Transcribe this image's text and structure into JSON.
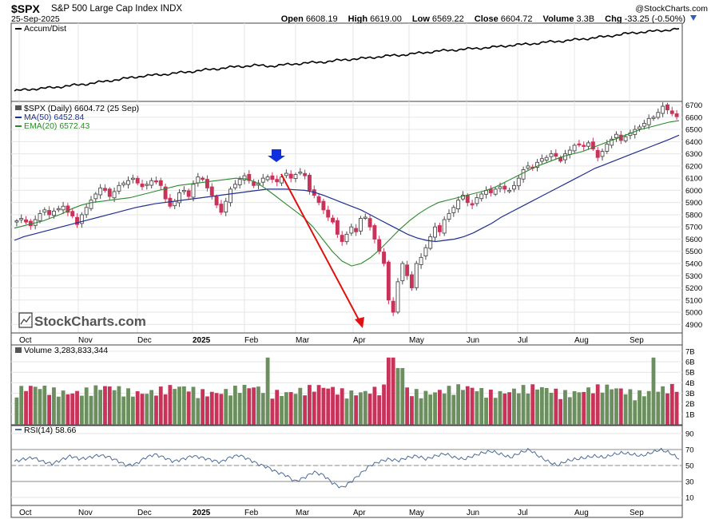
{
  "header": {
    "symbol": "$SPX",
    "name": "S&P 500 Large Cap Index INDX",
    "date": "25-Sep-2025",
    "copyright": "@StockCharts.com",
    "open_label": "Open",
    "open": "6608.19",
    "high_label": "High",
    "high": "6619.00",
    "low_label": "Low",
    "low": "6569.22",
    "close_label": "Close",
    "close": "6604.72",
    "volume_label": "Volume",
    "volume": "3.3B",
    "chg_label": "Chg",
    "chg": "-33.25 (-0.50%)"
  },
  "colors": {
    "up": "#6b8f5e",
    "down": "#c9335a",
    "ma50": "#1f2f8f",
    "ema20": "#2a8a2a",
    "arrow": "#e01010",
    "marker": "#1030e0",
    "accum": "#000000",
    "rsi": "#4a6a9a"
  },
  "chart_data": [
    {
      "type": "line",
      "legend": [
        "Accum/Dist"
      ],
      "series": [
        {
          "name": "Accum/Dist",
          "values": [
            0.05,
            0.08,
            0.1,
            0.13,
            0.16,
            0.2,
            0.24,
            0.28,
            0.3,
            0.33,
            0.36,
            0.39,
            0.42,
            0.44,
            0.43,
            0.46,
            0.48,
            0.5,
            0.53,
            0.55,
            0.58,
            0.6,
            0.63,
            0.66,
            0.68,
            0.7,
            0.72,
            0.75,
            0.77,
            0.8,
            0.82,
            0.85,
            0.88,
            0.92,
            0.95,
            0.97,
            1.0
          ]
        }
      ]
    },
    {
      "type": "candlestick",
      "legend": [
        "$SPX (Daily) 6604.72 (25 Sep)",
        "MA(50) 6452.84",
        "EMA(20) 6572.43"
      ],
      "y_ticks": [
        4900,
        5000,
        5100,
        5200,
        5300,
        5400,
        5500,
        5600,
        5700,
        5800,
        5900,
        6000,
        6100,
        6200,
        6300,
        6400,
        6500,
        6600,
        6700
      ],
      "ylim": [
        4830,
        6730
      ],
      "x_ticks": [
        "Oct",
        "Nov",
        "Dec",
        "2025",
        "Feb",
        "Mar",
        "Apr",
        "May",
        "Jun",
        "Jul",
        "Aug",
        "Sep"
      ],
      "close": [
        5750,
        5770,
        5740,
        5710,
        5760,
        5810,
        5840,
        5800,
        5830,
        5850,
        5870,
        5820,
        5790,
        5720,
        5800,
        5860,
        5920,
        5970,
        6020,
        6000,
        5950,
        5990,
        6040,
        6060,
        6080,
        6100,
        6060,
        6030,
        6050,
        6080,
        6070,
        6040,
        5930,
        5870,
        5910,
        5980,
        6000,
        5950,
        6050,
        6110,
        6090,
        6020,
        5960,
        5880,
        5820,
        5910,
        6010,
        6050,
        6090,
        6120,
        6080,
        6040,
        6060,
        6100,
        6110,
        6090,
        6070,
        6110,
        6140,
        6100,
        6130,
        6150,
        6120,
        6000,
        5960,
        5900,
        5840,
        5780,
        5740,
        5640,
        5580,
        5640,
        5700,
        5660,
        5770,
        5780,
        5700,
        5600,
        5500,
        5400,
        5100,
        5000,
        5250,
        5400,
        5300,
        5200,
        5400,
        5450,
        5530,
        5620,
        5700,
        5660,
        5760,
        5810,
        5860,
        5920,
        5960,
        5900,
        5880,
        5940,
        5970,
        6000,
        5980,
        6010,
        6030,
        6010,
        6000,
        6040,
        6100,
        6170,
        6200,
        6190,
        6230,
        6260,
        6270,
        6300,
        6280,
        6240,
        6300,
        6330,
        6370,
        6380,
        6360,
        6390,
        6340,
        6270,
        6320,
        6380,
        6420,
        6460,
        6410,
        6440,
        6470,
        6500,
        6520,
        6550,
        6590,
        6600,
        6640,
        6690,
        6660,
        6630,
        6604.72
      ],
      "ma50": [
        5590,
        5620,
        5640,
        5660,
        5680,
        5700,
        5720,
        5740,
        5760,
        5780,
        5800,
        5820,
        5840,
        5860,
        5875,
        5890,
        5900,
        5910,
        5920,
        5930,
        5940,
        5950,
        5960,
        5970,
        5980,
        5990,
        6000,
        6010,
        6010,
        6010,
        6005,
        6000,
        5985,
        5960,
        5930,
        5900,
        5870,
        5840,
        5800,
        5760,
        5720,
        5680,
        5640,
        5610,
        5590,
        5580,
        5590,
        5600,
        5620,
        5650,
        5690,
        5730,
        5780,
        5820,
        5860,
        5900,
        5940,
        5980,
        6020,
        6060,
        6100,
        6140,
        6180,
        6210,
        6240,
        6270,
        6300,
        6330,
        6360,
        6390,
        6420,
        6452.84
      ],
      "ema20": [
        5690,
        5710,
        5730,
        5750,
        5780,
        5810,
        5850,
        5880,
        5900,
        5910,
        5920,
        5930,
        5940,
        5960,
        5980,
        6000,
        6020,
        6040,
        6050,
        6060,
        6070,
        6080,
        6090,
        6100,
        6095,
        6070,
        6020,
        5960,
        5900,
        5840,
        5780,
        5700,
        5600,
        5500,
        5420,
        5380,
        5400,
        5450,
        5520,
        5600,
        5680,
        5750,
        5810,
        5860,
        5900,
        5920,
        5940,
        5960,
        5980,
        6000,
        6030,
        6070,
        6110,
        6150,
        6190,
        6220,
        6250,
        6280,
        6300,
        6320,
        6350,
        6380,
        6410,
        6440,
        6470,
        6500,
        6520,
        6540,
        6560,
        6572.43
      ]
    },
    {
      "type": "bar",
      "legend": [
        "Volume 3,283,833,344"
      ],
      "y_ticks": [
        "1B",
        "2B",
        "3B",
        "4B",
        "5B",
        "6B",
        "7B"
      ],
      "ylim": [
        0,
        7.6
      ],
      "x_ticks": [
        "Oct",
        "Nov",
        "Dec",
        "2025",
        "Feb",
        "Mar",
        "Apr",
        "May",
        "Jun",
        "Jul",
        "Aug",
        "Sep"
      ]
    },
    {
      "type": "line",
      "legend": [
        "RSI(14) 58.66"
      ],
      "y_ticks": [
        10,
        30,
        50,
        70,
        90
      ],
      "ylim": [
        0,
        100
      ],
      "overbought": 70,
      "oversold": 30,
      "x_ticks": [
        "Oct",
        "Nov",
        "Dec",
        "2025",
        "Feb",
        "Mar",
        "Apr",
        "May",
        "Jun",
        "Jul",
        "Aug",
        "Sep"
      ],
      "values": [
        55,
        58,
        60,
        55,
        52,
        57,
        62,
        58,
        60,
        63,
        61,
        56,
        50,
        52,
        60,
        64,
        60,
        55,
        58,
        62,
        60,
        57,
        54,
        60,
        63,
        58,
        52,
        48,
        42,
        38,
        30,
        35,
        42,
        38,
        28,
        22,
        30,
        40,
        50,
        55,
        58,
        56,
        60,
        62,
        58,
        62,
        65,
        60,
        58,
        62,
        66,
        68,
        64,
        60,
        66,
        70,
        62,
        55,
        50,
        56,
        58,
        60,
        62,
        60,
        64,
        66,
        64,
        62,
        66,
        70,
        66,
        58.66
      ]
    }
  ],
  "watermark": "StockCharts.com"
}
